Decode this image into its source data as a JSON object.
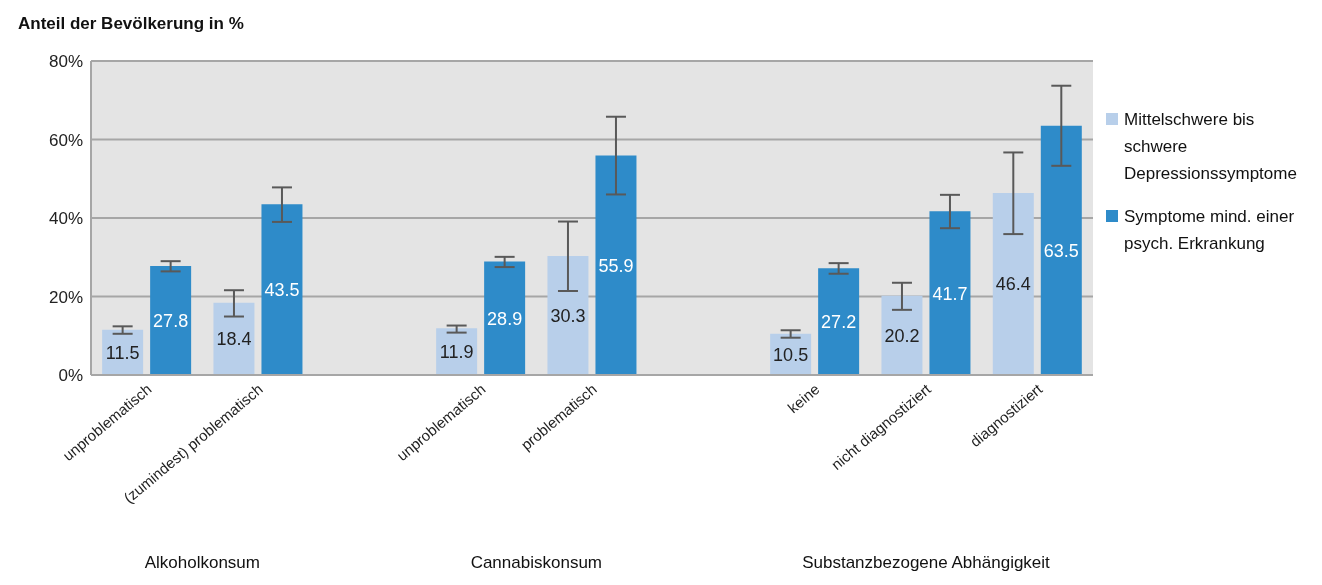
{
  "chart_data": {
    "type": "bar",
    "ylabel": "Anteil der Bevölkerung in %",
    "categories": [
      "unproblematisch",
      "(zumindest) problematisch",
      null,
      "unproblematisch",
      "problematisch",
      null,
      "keine",
      "nicht diagnostiziert",
      "diagnostiziert"
    ],
    "series": [
      {
        "name": "Mittelschwere bis schwere Depressionssymptome",
        "color": "#b8cfea",
        "values": [
          11.5,
          18.4,
          null,
          11.9,
          30.3,
          null,
          10.5,
          20.2,
          46.4
        ],
        "errors": [
          [
            10.5,
            12.4
          ],
          [
            14.9,
            21.6
          ],
          null,
          [
            10.8,
            12.6
          ],
          [
            21.4,
            39.1
          ],
          null,
          [
            9.5,
            11.4
          ],
          [
            16.6,
            23.5
          ],
          [
            35.9,
            56.7
          ]
        ]
      },
      {
        "name": "Symptome mind. einer psych. Erkrankung",
        "color": "#2e8bc9",
        "values": [
          27.8,
          43.5,
          null,
          28.9,
          55.9,
          null,
          27.2,
          41.7,
          63.5
        ],
        "errors": [
          [
            26.4,
            29.0
          ],
          [
            39.0,
            47.8
          ],
          null,
          [
            27.5,
            30.1
          ],
          [
            46.0,
            65.8
          ],
          null,
          [
            25.8,
            28.5
          ],
          [
            37.4,
            45.9
          ],
          [
            53.3,
            73.7
          ]
        ]
      }
    ],
    "ylim": [
      0,
      80
    ],
    "yticks": [
      {
        "value": 0,
        "label": "0%"
      },
      {
        "value": 20,
        "label": "20%"
      },
      {
        "value": 40,
        "label": "40%"
      },
      {
        "value": 60,
        "label": "60%"
      },
      {
        "value": 80,
        "label": "80%"
      }
    ],
    "grid": "y",
    "legend": "right",
    "data_labels": true,
    "annotations": [
      "Alkoholkonsum",
      "Cannabiskonsum",
      "Substanzbezogene Abhängigkeit"
    ]
  }
}
